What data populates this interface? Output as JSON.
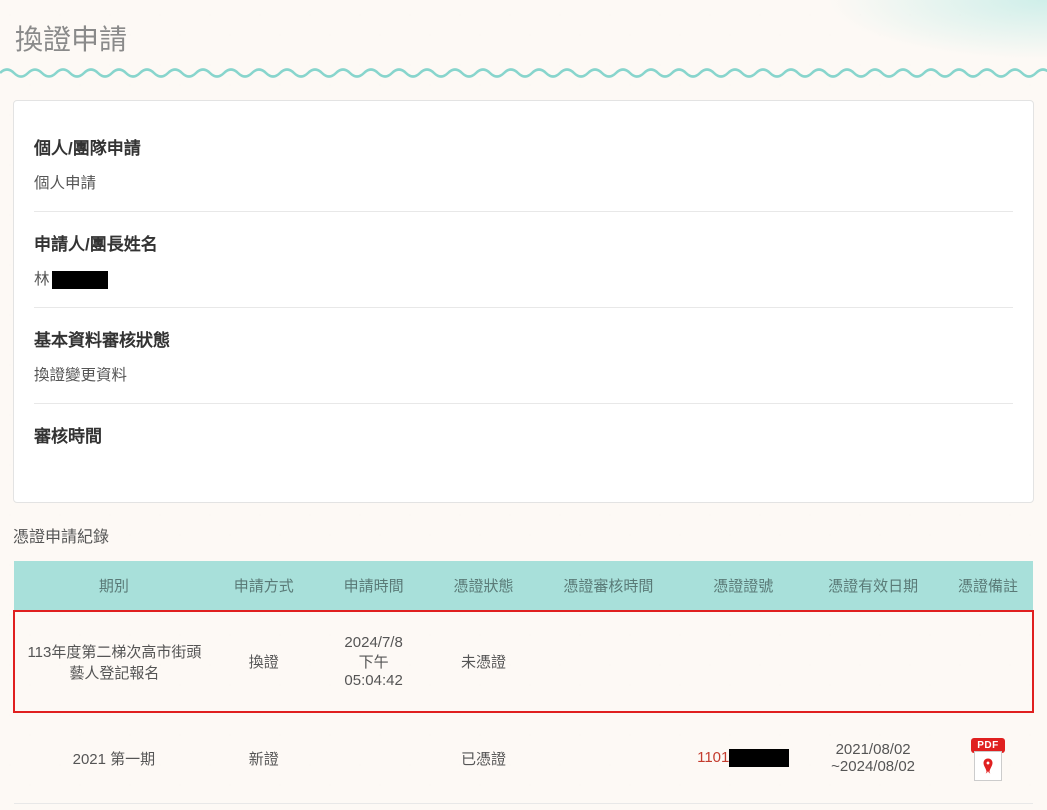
{
  "pageTitle": "換證申請",
  "info": {
    "applicationTypeLabel": "個人/團隊申請",
    "applicationTypeValue": "個人申請",
    "applicantNameLabel": "申請人/團長姓名",
    "applicantNamePrefix": "林",
    "reviewStatusLabel": "基本資料審核狀態",
    "reviewStatusValue": "換證變更資料",
    "reviewTimeLabel": "審核時間",
    "reviewTimeValue": ""
  },
  "recordsTitle": "憑證申請紀錄",
  "tableHeaders": {
    "period": "期別",
    "method": "申請方式",
    "time": "申請時間",
    "status": "憑證狀態",
    "reviewTime": "憑證審核時間",
    "certNumber": "憑證證號",
    "validDate": "憑證有效日期",
    "remark": "憑證備註"
  },
  "rows": [
    {
      "period": "113年度第二梯次高市街頭藝人登記報名",
      "method": "換證",
      "timeLine1": "2024/7/8",
      "timeLine2": "下午",
      "timeLine3": "05:04:42",
      "status": "未憑證",
      "reviewTime": "",
      "certNumberPrefix": "",
      "validDate1": "",
      "validDate2": "",
      "highlighted": true,
      "hasPdf": false
    },
    {
      "period": "2021 第一期",
      "method": "新證",
      "timeLine1": "",
      "timeLine2": "",
      "timeLine3": "",
      "status": "已憑證",
      "reviewTime": "",
      "certNumberPrefix": "1101",
      "validDate1": "2021/08/02",
      "validDate2": "~2024/08/02",
      "highlighted": false,
      "hasPdf": true
    }
  ],
  "pdfLabel": "PDF",
  "colors": {
    "headerBg": "#a8e0da",
    "highlightBorder": "#e02020",
    "statusRed": "#c43c2e",
    "waveColor": "#88d5cd"
  }
}
